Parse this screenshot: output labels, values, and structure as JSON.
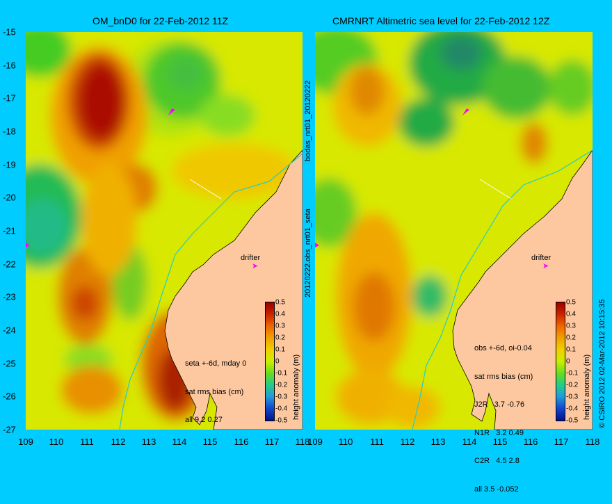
{
  "titles": {
    "left": "OM_bnD0 for 22-Feb-2012 11Z",
    "right": "CMRNRT Altimetric sea level  for 22-Feb-2012 12Z"
  },
  "x_ticks": [
    "109",
    "110",
    "111",
    "112",
    "113",
    "114",
    "115",
    "116",
    "117",
    "118"
  ],
  "y_ticks": [
    "-15",
    "-16",
    "-17",
    "-18",
    "-19",
    "-20",
    "-21",
    "-22",
    "-23",
    "-24",
    "-25",
    "-26",
    "-27"
  ],
  "side_labels": {
    "middle_top": "bodas_nrt01_20120222",
    "middle_bottom": "20120222.obs_nrt01_seta",
    "copyright": "© CSIRO 2012  02-Mar-2012 10:15:35"
  },
  "drifter_label": "drifter",
  "left_stats": [
    "seta +-6d, mday 0",
    "sat rms bias (cm)",
    "all 9.2 0.27"
  ],
  "right_stats": [
    "obs +-6d, oi-0.04",
    "sat rms bias (cm)",
    "J2R   3.7 -0.76",
    "N1R   3.2 0.49",
    "C2R   4.5 2.8",
    "all 3.5 -0.052"
  ],
  "colorbar": {
    "ticks": [
      "0.5",
      "0.4",
      "0.3",
      "0.2",
      "0.1",
      "0",
      "-0.1",
      "-0.2",
      "-0.3",
      "-0.4",
      "-0.5"
    ],
    "label": "height anomaly (m)"
  },
  "colors": {
    "background": "#00ccff",
    "land": "#fdc8a0",
    "coast_track": "#22cccc",
    "drifter": "#ff00ff"
  }
}
